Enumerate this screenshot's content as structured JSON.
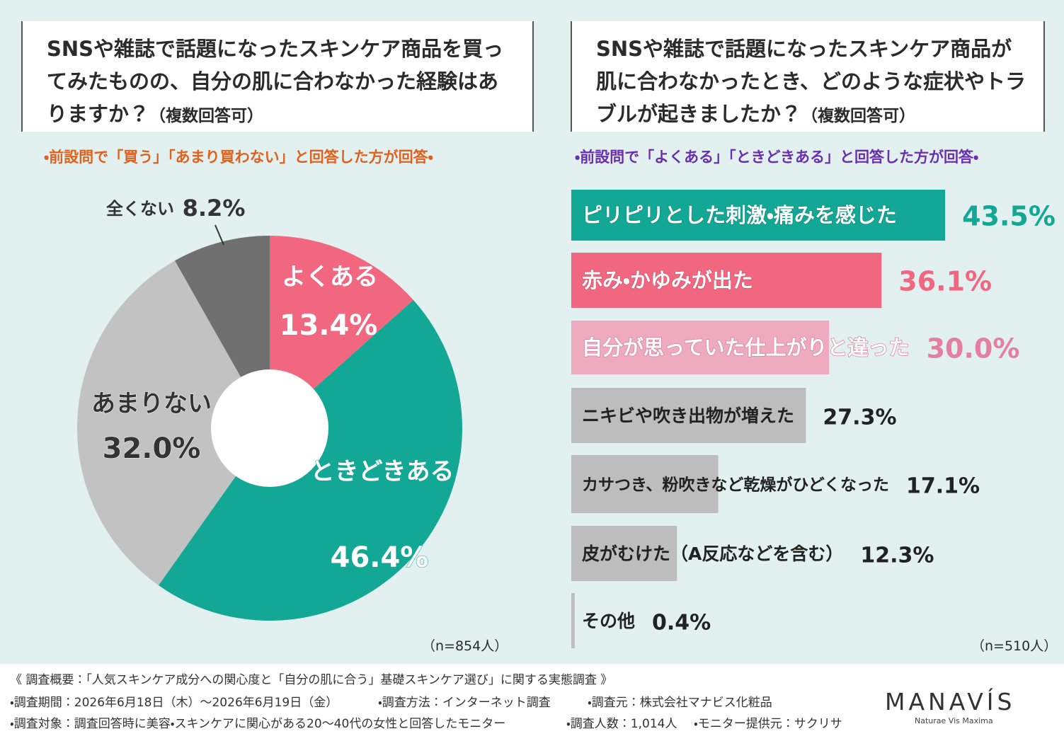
{
  "chart_data": [
    {
      "type": "pie",
      "title": "SNSや雑誌で話題になったスキンケア商品を買ってみたものの、自分の肌に合わなかった経験はありますか？",
      "subtitle": "（複数回答可）",
      "note": "・前設問で「買う」「あまり買わない」と回答した方が回答・",
      "sample": "（n=854人）",
      "categories": [
        "よくある",
        "ときどきある",
        "あまりない",
        "全くない"
      ],
      "values": [
        13.4,
        46.4,
        32.0,
        8.2
      ],
      "value_labels": [
        "13.4%",
        "46.4%",
        "32.0%",
        "8.2%"
      ],
      "colors": [
        "#f0677f",
        "#13a895",
        "#c2c2c2",
        "#707070"
      ],
      "donut": true
    },
    {
      "type": "bar",
      "orientation": "horizontal",
      "title": "SNSや雑誌で話題になったスキンケア商品が肌に合わなかったとき、どのような症状やトラブルが起きましたか？",
      "subtitle": "（複数回答可）",
      "note": "・前設問で「よくある」「ときどきある」と回答した方が回答・",
      "sample": "（n=510人）",
      "categories": [
        "ピリピリとした刺激・痛みを感じた",
        "赤み・かゆみが出た",
        "自分が思っていた仕上がりと違った",
        "ニキビや吹き出物が増えた",
        "カサつき、粉吹きなど乾燥がひどくなった",
        "皮がむけた（A反応などを含む）",
        "その他"
      ],
      "values": [
        43.5,
        36.1,
        30.0,
        27.3,
        17.1,
        12.3,
        0.4
      ],
      "value_labels": [
        "43.5%",
        "36.1%",
        "30.0%",
        "27.3%",
        "17.1%",
        "12.3%",
        "0.4%"
      ],
      "colors": [
        "#13a895",
        "#f0677f",
        "#eeabc0",
        "#bdbdbd",
        "#bdbdbd",
        "#bdbdbd",
        "#bdbdbd"
      ]
    }
  ],
  "footer": {
    "survey_title": "《 調査概要：「人気スキンケア成分への関心度と「自分の肌に合う」基礎スキンケア選び」に関する実態調査 》",
    "items": [
      "・調査期間：2026年6月18日（木）～2026年6月19日（金）",
      "・調査方法：インターネット調査",
      "・調査元：株式会社マナビス化粧品",
      "・調査対象：調査回答時に美容・スキンケアに関心がある20～40代の女性と回答したモニター",
      "・調査人数：1,014人",
      "・モニター提供元：サクリサ"
    ],
    "logo": "MANAVÍS",
    "tagline": "Naturae Vis Maxima"
  }
}
